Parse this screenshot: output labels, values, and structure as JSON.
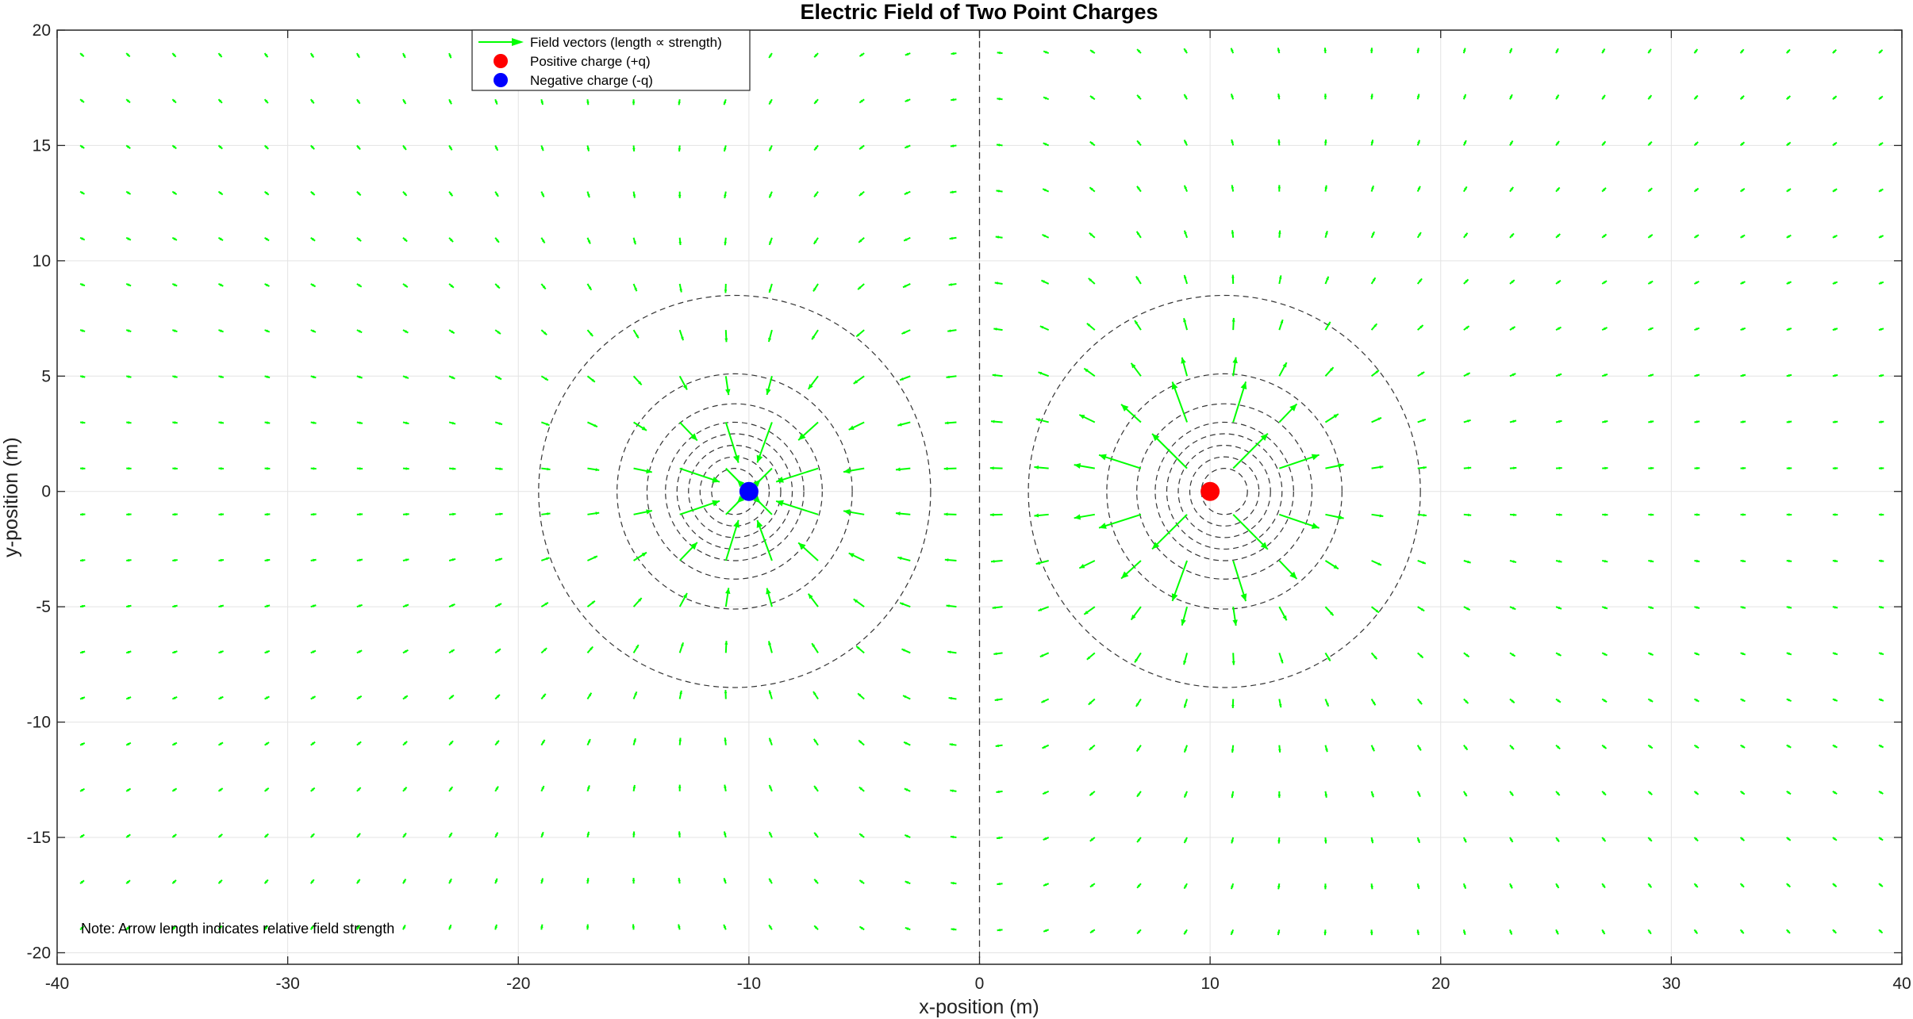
{
  "chart_data": {
    "type": "quiver",
    "title": "Electric Field of Two Point Charges",
    "xlabel": "x-position (m)",
    "ylabel": "y-position (m)",
    "xlim": [
      -40,
      40
    ],
    "ylim": [
      -20.5,
      20
    ],
    "xticks": [
      -40,
      -30,
      -20,
      -10,
      0,
      10,
      20,
      30,
      40
    ],
    "yticks": [
      -20,
      -15,
      -10,
      -5,
      0,
      5,
      10,
      15,
      20
    ],
    "grid": true,
    "legend_position": "top-left (inside, near x=-22 to 0)",
    "charges": [
      {
        "label": "Positive charge (+q)",
        "x": 10,
        "y": 0,
        "sign": 1,
        "color": "#ff0000"
      },
      {
        "label": "Negative charge (-q)",
        "x": -10,
        "y": 0,
        "sign": -1,
        "color": "#0000ff"
      }
    ],
    "field_vectors": {
      "label": "Field vectors (length ∝ strength)",
      "color": "#00ff00",
      "grid_step": [
        2,
        2
      ]
    },
    "equipotential_color": "#333333",
    "reference_line": {
      "x": 0,
      "style": "dashed"
    },
    "annotation": "Note: Arrow length indicates relative field strength"
  }
}
